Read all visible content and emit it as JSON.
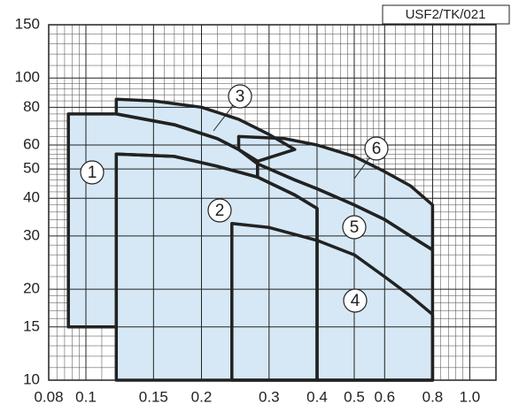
{
  "chart_data": {
    "type": "region",
    "tag": "USF2/TK/021",
    "log_x": true,
    "log_y": true,
    "grid": true,
    "color": "#d6e8f5",
    "xlim": [
      0.08,
      1.17
    ],
    "ylim": [
      10,
      150
    ],
    "xticks": [
      0.08,
      0.1,
      0.15,
      0.2,
      0.3,
      0.4,
      0.5,
      0.6,
      0.8,
      {
        "value": 1,
        "label": "1.0"
      }
    ],
    "yticks": [
      10,
      15,
      20,
      30,
      40,
      50,
      60,
      80,
      100,
      150
    ],
    "regions": [
      {
        "label": "1",
        "x": [
          0.09,
          0.09,
          0.12,
          0.17,
          0.22,
          0.25,
          0.28,
          0.28,
          0.22,
          0.17,
          0.12,
          0.12
        ],
        "y": [
          15,
          76,
          76,
          70,
          63,
          58,
          53,
          47,
          51,
          55,
          56,
          15
        ]
      },
      {
        "label": "2",
        "x": [
          0.12,
          0.12,
          0.17,
          0.22,
          0.28,
          0.35,
          0.4,
          0.4
        ],
        "y": [
          10,
          56,
          55,
          51,
          47,
          41,
          37,
          10
        ]
      },
      {
        "label": "3",
        "x": [
          0.12,
          0.12,
          0.15,
          0.2,
          0.25,
          0.3,
          0.35,
          0.28,
          0.25,
          0.22,
          0.17
        ],
        "y": [
          76,
          85,
          84,
          80,
          73,
          65,
          58,
          53,
          58,
          63,
          70
        ]
      },
      {
        "label": "4",
        "x": [
          0.24,
          0.24,
          0.3,
          0.4,
          0.5,
          0.6,
          0.7,
          0.8,
          0.8
        ],
        "y": [
          10,
          33,
          32,
          29,
          26,
          22,
          19,
          16.5,
          10
        ]
      },
      {
        "label": "5",
        "x": [
          0.28,
          0.35,
          0.4,
          0.5,
          0.6,
          0.7,
          0.8,
          0.8,
          0.4,
          0.4,
          0.35,
          0.28
        ],
        "y": [
          52,
          46,
          43,
          38,
          34,
          30,
          27,
          10,
          10,
          37,
          41,
          47
        ]
      },
      {
        "label": "6",
        "x": [
          0.25,
          0.25,
          0.33,
          0.4,
          0.5,
          0.6,
          0.7,
          0.8,
          0.8,
          0.7,
          0.6,
          0.5,
          0.4,
          0.35,
          0.28
        ],
        "y": [
          58,
          64,
          63,
          60,
          55,
          49,
          44,
          38,
          27,
          30,
          34,
          38,
          43,
          46,
          52
        ]
      }
    ]
  }
}
